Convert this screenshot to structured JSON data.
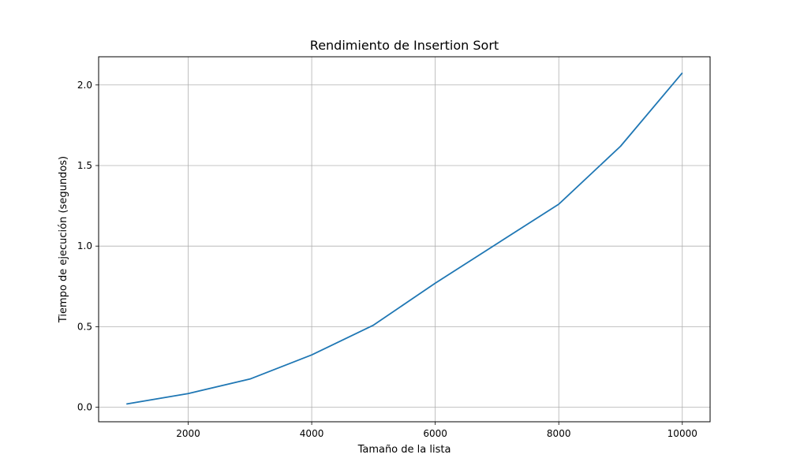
{
  "chart_data": {
    "type": "line",
    "title": "Rendimiento de Insertion Sort",
    "xlabel": "Tamaño de la lista",
    "ylabel": "Tiempo de ejecución (segundos)",
    "xlim": [
      550,
      10450
    ],
    "ylim": [
      -0.09,
      2.175
    ],
    "x_ticks": [
      2000,
      4000,
      6000,
      8000,
      10000
    ],
    "y_ticks": [
      0.0,
      0.5,
      1.0,
      1.5,
      2.0
    ],
    "y_tick_labels": [
      "0.0",
      "0.5",
      "1.0",
      "1.5",
      "2.0"
    ],
    "grid": true,
    "series": [
      {
        "name": "Insertion Sort",
        "color": "#1f77b4",
        "x": [
          1000,
          2000,
          3000,
          4000,
          5000,
          6000,
          7000,
          8000,
          9000,
          10000
        ],
        "values": [
          0.02,
          0.085,
          0.175,
          0.325,
          0.51,
          0.77,
          1.015,
          1.26,
          1.62,
          2.075
        ]
      }
    ]
  }
}
